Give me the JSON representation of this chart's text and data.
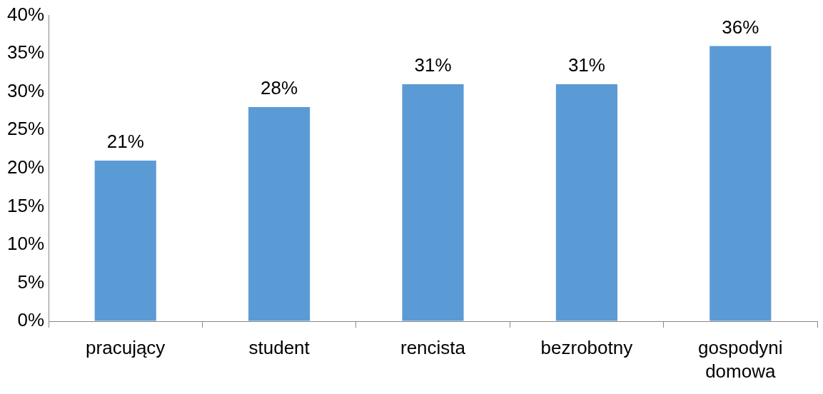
{
  "chart_data": {
    "type": "bar",
    "categories": [
      "pracujący",
      "student",
      "rencista",
      "bezrobotny",
      "gospodyni domowa"
    ],
    "values": [
      21,
      28,
      31,
      31,
      36
    ],
    "color": "#5b9bd5",
    "value_labels": [
      "21%",
      "28%",
      "31%",
      "31%",
      "36%"
    ],
    "ylim": [
      0,
      40
    ],
    "yticks": [
      {
        "value": 0,
        "label": "0%"
      },
      {
        "value": 5,
        "label": "5%"
      },
      {
        "value": 10,
        "label": "10%"
      },
      {
        "value": 15,
        "label": "15%"
      },
      {
        "value": 20,
        "label": "20%"
      },
      {
        "value": 25,
        "label": "25%"
      },
      {
        "value": 30,
        "label": "30%"
      },
      {
        "value": 35,
        "label": "35%"
      },
      {
        "value": 40,
        "label": "40%"
      }
    ],
    "grid": false,
    "legend": false
  }
}
